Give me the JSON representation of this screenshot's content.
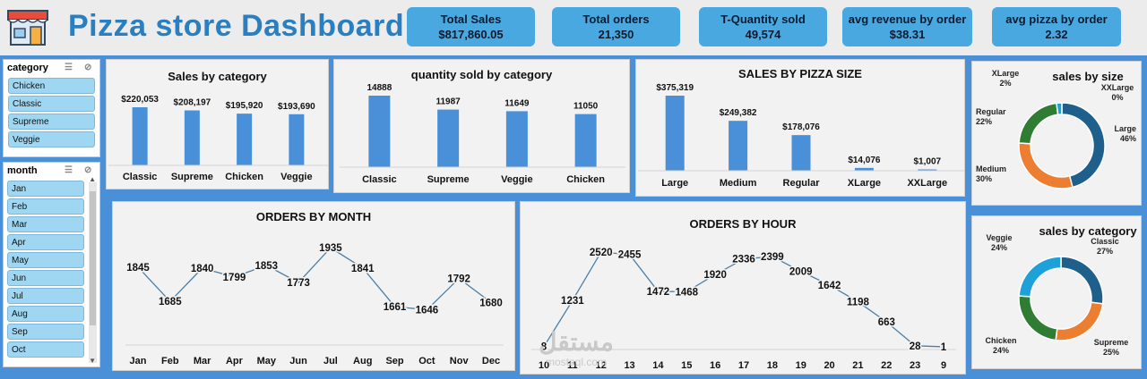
{
  "header": {
    "title": "Pizza store Dashboard"
  },
  "kpis": [
    {
      "label": "Total Sales",
      "value": "$817,860.05"
    },
    {
      "label": "Total orders",
      "value": "21,350"
    },
    {
      "label": "T-Quantity sold",
      "value": "49,574"
    },
    {
      "label": "avg revenue by order",
      "value": "$38.31"
    },
    {
      "label": "avg pizza by order",
      "value": "2.32"
    }
  ],
  "slicers": {
    "category": {
      "title": "category",
      "items": [
        "Chicken",
        "Classic",
        "Supreme",
        "Veggie"
      ]
    },
    "month": {
      "title": "month",
      "items": [
        "Jan",
        "Feb",
        "Mar",
        "Apr",
        "May",
        "Jun",
        "Jul",
        "Aug",
        "Sep",
        "Oct"
      ]
    }
  },
  "colors": {
    "bar": "#4a90d9",
    "line": "#4a7fa8",
    "navy": "#1f5f8b",
    "orange": "#ed7d31",
    "green": "#2e7d32",
    "sky": "#1ea0d8",
    "accent": "#4aa8e0"
  },
  "watermark": {
    "text": "mostaql.com"
  },
  "chart_data": [
    {
      "id": "sales_by_category",
      "type": "bar",
      "title": "Sales by category",
      "categories": [
        "Classic",
        "Supreme",
        "Chicken",
        "Veggie"
      ],
      "values": [
        220053,
        208197,
        195920,
        193690
      ],
      "labels": [
        "$220,053",
        "$208,197",
        "$195,920",
        "$193,690"
      ]
    },
    {
      "id": "qty_by_category",
      "type": "bar",
      "title": "quantity sold by category",
      "categories": [
        "Classic",
        "Supreme",
        "Veggie",
        "Chicken"
      ],
      "values": [
        14888,
        11987,
        11649,
        11050
      ],
      "labels": [
        "14888",
        "11987",
        "11649",
        "11050"
      ]
    },
    {
      "id": "sales_by_size",
      "type": "bar",
      "title": "SALES BY PIZZA SIZE",
      "categories": [
        "Large",
        "Medium",
        "Regular",
        "XLarge",
        "XXLarge"
      ],
      "values": [
        375319,
        249382,
        178076,
        14076,
        1007
      ],
      "labels": [
        "$375,319",
        "$249,382",
        "$178,076",
        "$14,076",
        "$1,007"
      ]
    },
    {
      "id": "orders_by_month",
      "type": "line",
      "title": "ORDERS BY MONTH",
      "categories": [
        "Jan",
        "Feb",
        "Mar",
        "Apr",
        "May",
        "Jun",
        "Jul",
        "Aug",
        "Sep",
        "Oct",
        "Nov",
        "Dec"
      ],
      "values": [
        1845,
        1685,
        1840,
        1799,
        1853,
        1773,
        1935,
        1841,
        1661,
        1646,
        1792,
        1680
      ]
    },
    {
      "id": "orders_by_hour",
      "type": "line",
      "title": "ORDERS BY HOUR",
      "categories": [
        "10",
        "11",
        "12",
        "13",
        "14",
        "15",
        "16",
        "17",
        "18",
        "19",
        "20",
        "21",
        "22",
        "23",
        "9"
      ],
      "values": [
        8,
        1231,
        2520,
        2455,
        1472,
        1468,
        1920,
        2336,
        2399,
        2009,
        1642,
        1198,
        663,
        28,
        1
      ]
    },
    {
      "id": "sales_by_size_pie",
      "type": "pie",
      "title": "sales by size",
      "categories": [
        "Large",
        "Medium",
        "Regular",
        "XLarge",
        "XXLarge"
      ],
      "values": [
        46,
        30,
        22,
        2,
        0
      ],
      "labels": [
        "46%",
        "30%",
        "22%",
        "2%",
        "0%"
      ]
    },
    {
      "id": "sales_by_category_pie",
      "type": "pie",
      "title": "sales by category",
      "categories": [
        "Classic",
        "Supreme",
        "Chicken",
        "Veggie"
      ],
      "values": [
        27,
        25,
        24,
        24
      ],
      "labels": [
        "27%",
        "25%",
        "24%",
        "24%"
      ]
    }
  ]
}
